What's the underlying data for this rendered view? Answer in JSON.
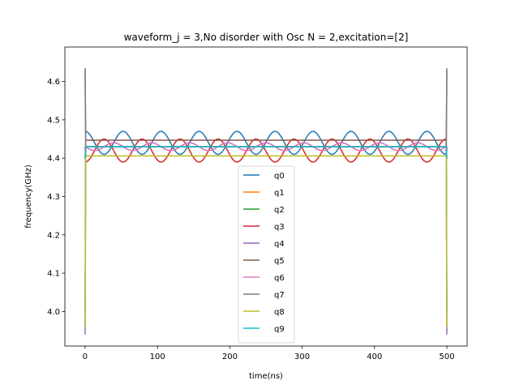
{
  "chart_data": {
    "type": "line",
    "title": "waveform_j = 3,No disorder with Osc N =  2,excitation=[2]",
    "xlabel": "time(ns)",
    "ylabel": "frequency(GHz)",
    "xlim": [
      -28,
      528
    ],
    "ylim": [
      3.91,
      4.69
    ],
    "xticks": [
      0,
      100,
      200,
      300,
      400,
      500
    ],
    "yticks": [
      4.0,
      4.1,
      4.2,
      4.3,
      4.4,
      4.5,
      4.6
    ],
    "legend_position": "lower-center",
    "grid": false,
    "t_end": 500,
    "series": [
      {
        "name": "q0",
        "color": "#1f77b4",
        "base": 4.44,
        "amp": 0.03,
        "period": 52.5,
        "phase": 0,
        "start": 4.0,
        "peak": 4.47
      },
      {
        "name": "q1",
        "color": "#ff7f0e",
        "base": 4.43,
        "amp": 0,
        "period": 52.5,
        "phase": 0,
        "start": 4.4,
        "peak": 4.43
      },
      {
        "name": "q2",
        "color": "#2ca02c",
        "base": 4.43,
        "amp": 0,
        "period": 52.5,
        "phase": 0,
        "start": 4.4,
        "peak": 4.43
      },
      {
        "name": "q3",
        "color": "#d62728",
        "base": 4.42,
        "amp": -0.03,
        "period": 52.5,
        "phase": 0,
        "start": 4.43,
        "peak": 4.39
      },
      {
        "name": "q4",
        "color": "#9467bd",
        "base": 4.43,
        "amp": 0.01,
        "period": 52.5,
        "phase": 0.5,
        "start": 3.94,
        "peak": 4.44
      },
      {
        "name": "q5",
        "color": "#8c564b",
        "base": 4.447,
        "amp": 0,
        "period": 52.5,
        "phase": 0,
        "start": 4.63,
        "peak": 4.447
      },
      {
        "name": "q6",
        "color": "#e377c2",
        "base": 4.43,
        "amp": 0.01,
        "period": 52.5,
        "phase": 0.5,
        "start": 4.58,
        "peak": 4.44
      },
      {
        "name": "q7",
        "color": "#7f7f7f",
        "base": 4.43,
        "amp": 0,
        "period": 52.5,
        "phase": 0,
        "start": 4.635,
        "peak": 4.43
      },
      {
        "name": "q8",
        "color": "#bcbd22",
        "base": 4.406,
        "amp": 0,
        "period": 52.5,
        "phase": 0,
        "start": 3.96,
        "peak": 4.406
      },
      {
        "name": "q9",
        "color": "#17becf",
        "base": 4.43,
        "amp": 0,
        "period": 52.5,
        "phase": 0,
        "start": 4.4,
        "peak": 4.43
      }
    ]
  }
}
